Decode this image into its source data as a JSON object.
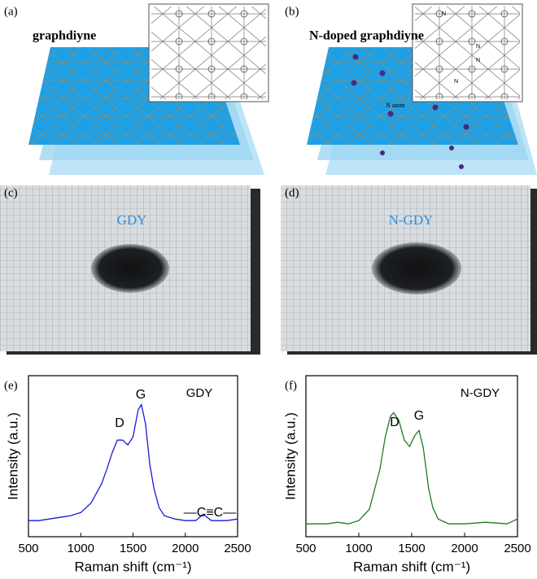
{
  "panels": {
    "a": {
      "label": "(a)",
      "title": "graphdiyne"
    },
    "b": {
      "label": "(b)",
      "title": "N-doped graphdiyne",
      "atom_label": "N atom",
      "inset_atom": "N"
    },
    "c": {
      "label": "(c)",
      "sample": "GDY"
    },
    "d": {
      "label": "(d)",
      "sample": "N-GDY"
    },
    "e": {
      "label": "(e)"
    },
    "f": {
      "label": "(f)"
    }
  },
  "chart_data": [
    {
      "type": "line",
      "x_label": "Raman shift (cm⁻¹)",
      "y_label": "Intensity (a.u.)",
      "color": "#1a1adb",
      "xlim": [
        500,
        2500
      ],
      "xticks": [
        500,
        1000,
        1500,
        2000,
        2500
      ],
      "ylim": [
        0,
        1
      ],
      "annotations": [
        "GDY",
        "G",
        "D",
        "—C≡C—"
      ],
      "x": [
        500,
        600,
        700,
        800,
        900,
        1000,
        1100,
        1200,
        1250,
        1300,
        1350,
        1400,
        1450,
        1500,
        1550,
        1580,
        1620,
        1660,
        1700,
        1750,
        1800,
        1900,
        2000,
        2100,
        2170,
        2250,
        2400,
        2500
      ],
      "values": [
        0.1,
        0.1,
        0.11,
        0.12,
        0.13,
        0.15,
        0.21,
        0.33,
        0.42,
        0.52,
        0.6,
        0.6,
        0.57,
        0.62,
        0.79,
        0.82,
        0.7,
        0.45,
        0.3,
        0.18,
        0.13,
        0.11,
        0.1,
        0.1,
        0.14,
        0.1,
        0.1,
        0.11
      ]
    },
    {
      "type": "line",
      "x_label": "Raman shift (cm⁻¹)",
      "y_label": "Intensity (a.u.)",
      "color": "#1f7a1f",
      "xlim": [
        500,
        2500
      ],
      "xticks": [
        500,
        1000,
        1500,
        2000,
        2500
      ],
      "ylim": [
        0,
        1
      ],
      "annotations": [
        "N-GDY",
        "D",
        "G"
      ],
      "x": [
        500,
        700,
        800,
        900,
        1000,
        1100,
        1200,
        1250,
        1300,
        1330,
        1380,
        1430,
        1480,
        1530,
        1570,
        1610,
        1660,
        1700,
        1750,
        1850,
        2000,
        2200,
        2400,
        2500
      ],
      "values": [
        0.08,
        0.08,
        0.09,
        0.08,
        0.1,
        0.17,
        0.42,
        0.62,
        0.75,
        0.77,
        0.72,
        0.6,
        0.56,
        0.63,
        0.66,
        0.55,
        0.3,
        0.18,
        0.11,
        0.08,
        0.08,
        0.09,
        0.08,
        0.11
      ]
    }
  ]
}
